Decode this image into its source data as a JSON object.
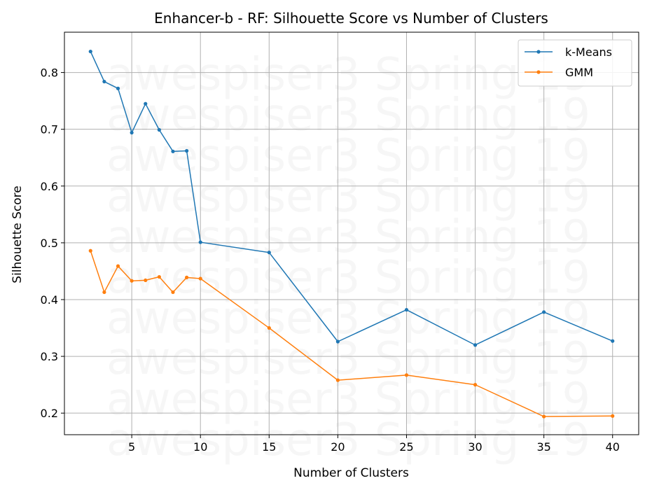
{
  "chart_data": {
    "type": "line",
    "title": "Enhancer-b - RF: Silhouette Score vs Number of Clusters",
    "xlabel": "Number of Clusters",
    "ylabel": "Silhouette Score",
    "xlim": [
      0.1,
      41.9
    ],
    "ylim": [
      0.162,
      0.871
    ],
    "xticks": [
      5,
      10,
      15,
      20,
      25,
      30,
      35,
      40
    ],
    "yticks": [
      0.2,
      0.3,
      0.4,
      0.5,
      0.6,
      0.7,
      0.8
    ],
    "grid": true,
    "legend_position": "top-right",
    "watermark": "awespiser3 Spring 19",
    "x": [
      2,
      3,
      4,
      5,
      6,
      7,
      8,
      9,
      10,
      15,
      20,
      25,
      30,
      35,
      40
    ],
    "series": [
      {
        "name": "k-Means",
        "color": "#1f77b4",
        "values": [
          0.837,
          0.784,
          0.772,
          0.694,
          0.745,
          0.699,
          0.661,
          0.662,
          0.501,
          0.483,
          0.326,
          0.382,
          0.32,
          0.378,
          0.327
        ]
      },
      {
        "name": "GMM",
        "color": "#ff7f0e",
        "values": [
          0.486,
          0.413,
          0.459,
          0.433,
          0.434,
          0.44,
          0.413,
          0.439,
          0.437,
          0.35,
          0.258,
          0.267,
          0.25,
          0.194,
          0.195
        ]
      }
    ]
  }
}
